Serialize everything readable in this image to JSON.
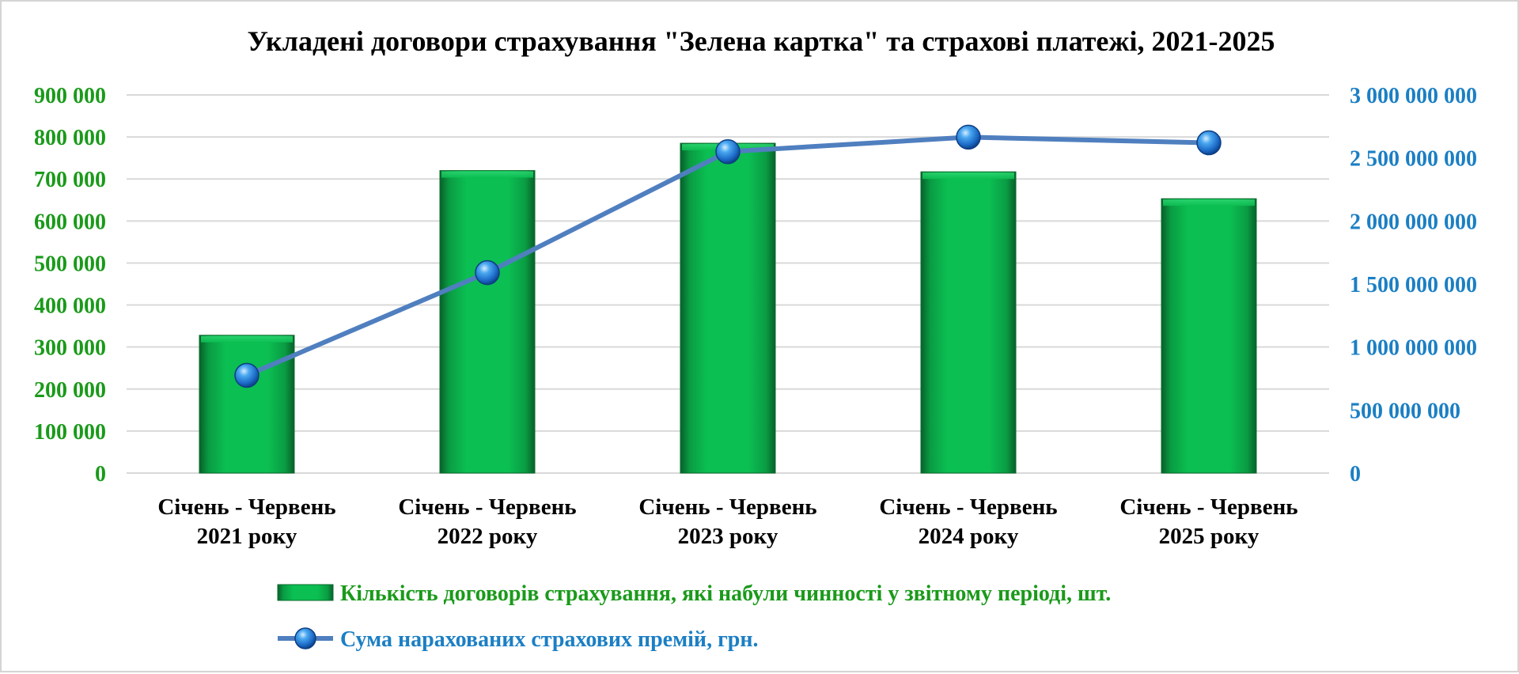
{
  "chart_data": {
    "type": "bar",
    "title": "Укладені договори страхування \"Зелена картка\" та страхові платежі, 2021-2025",
    "categories": [
      [
        "Січень - Червень",
        "2021 року"
      ],
      [
        "Січень - Червень",
        "2022 року"
      ],
      [
        "Січень - Червень",
        "2023 року"
      ],
      [
        "Січень - Червень",
        "2024 року"
      ],
      [
        "Січень - Червень",
        "2025 року"
      ]
    ],
    "series": [
      {
        "name": "Кількість договорів страхування, які набули чинності у звітному періоді, шт.",
        "type": "bar",
        "axis": "left",
        "values": [
          328000,
          720000,
          785000,
          717000,
          653000
        ]
      },
      {
        "name": "Сума нарахованих страхових премій, грн.",
        "type": "line",
        "axis": "right",
        "values": [
          775000000,
          1590000000,
          2550000000,
          2665000000,
          2620000000
        ]
      }
    ],
    "y_left": {
      "ylim": [
        0,
        900000
      ],
      "ticks": [
        "0",
        "100 000",
        "200 000",
        "300 000",
        "400 000",
        "500 000",
        "600 000",
        "700 000",
        "800 000",
        "900 000"
      ]
    },
    "y_right": {
      "ylim": [
        0,
        3000000000
      ],
      "ticks": [
        "0",
        "500 000 000",
        "1 000 000 000",
        "1 500 000 000",
        "2 000 000 000",
        "2 500 000 000",
        "3 000 000 000"
      ]
    },
    "grid": true,
    "legend_position": "bottom",
    "colors": {
      "bar": "#0bbf52",
      "bar_dark": "#0a6b2c",
      "line": "#4f7fbf",
      "left_axis_text": "#1a9a1a",
      "right_axis_text": "#1b7fc4",
      "grid": "#d9d9d9"
    }
  }
}
